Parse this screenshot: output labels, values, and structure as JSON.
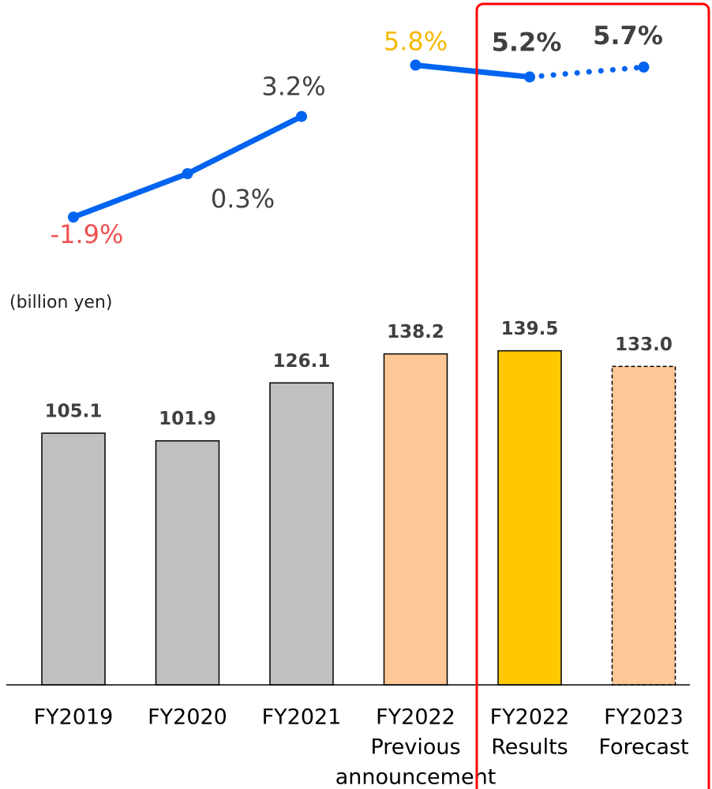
{
  "chart_data": {
    "type": "bar",
    "unit_label": "(billion yen)",
    "categories": [
      [
        "FY2019"
      ],
      [
        "FY2020"
      ],
      [
        "FY2021"
      ],
      [
        "FY2022",
        "Previous",
        "announcement"
      ],
      [
        "FY2022",
        "Results"
      ],
      [
        "FY2023",
        "Forecast"
      ]
    ],
    "values": [
      105.1,
      101.9,
      126.1,
      138.2,
      139.5,
      133.0
    ],
    "value_labels": [
      "105.1",
      "101.9",
      "126.1",
      "138.2",
      "139.5",
      "133.0"
    ],
    "colors": [
      "#c0c0c0",
      "#c0c0c0",
      "#c0c0c0",
      "#fdc896",
      "#ffc800",
      "#fdc896"
    ],
    "dashed": [
      false,
      false,
      false,
      false,
      false,
      true
    ],
    "ylim": [
      0,
      286
    ],
    "line": {
      "type": "line",
      "color": "#0064f0",
      "axis": "y2",
      "values": [
        -1.9,
        0.3,
        3.2,
        5.8,
        5.2,
        5.7
      ],
      "value_labels": [
        "-1.9%",
        "0.3%",
        "3.2%",
        "5.8%",
        "5.2%",
        "5.7%"
      ],
      "label_colors": [
        "#f05050",
        "#404040",
        "#404040",
        "#f5b800",
        "#404040",
        "#404040"
      ],
      "label_bold": [
        false,
        false,
        false,
        false,
        true,
        true
      ],
      "segment_styles": [
        null,
        "solid",
        "solid",
        null,
        "solid",
        "dotted"
      ]
    },
    "y2lim": [
      -25.6,
      9.1
    ]
  }
}
